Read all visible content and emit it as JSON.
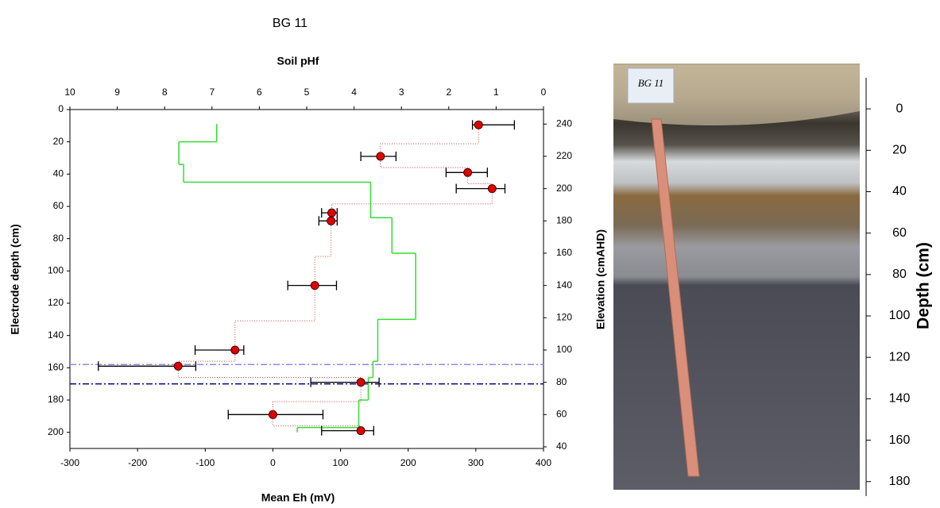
{
  "chart_data": {
    "type": "scatter",
    "title": "BG 11",
    "x_label": "Mean Eh (mV)",
    "y_label": "Electrode depth (cm)",
    "x2_label": "Soil pHf",
    "y2_label": "Elevation (cmAHD)",
    "xlim": [
      -300,
      400
    ],
    "xticks": [
      -300,
      -200,
      -100,
      0,
      100,
      200,
      300,
      400
    ],
    "ylim": [
      0,
      210
    ],
    "yticks": [
      0,
      20,
      40,
      60,
      80,
      100,
      120,
      140,
      160,
      180,
      200
    ],
    "x2lim": [
      10,
      0
    ],
    "x2ticks": [
      10,
      9,
      8,
      7,
      6,
      5,
      4,
      3,
      2,
      1,
      0
    ],
    "y2lim": [
      249,
      39
    ],
    "y2ticks": [
      40,
      60,
      80,
      100,
      120,
      140,
      160,
      180,
      200,
      220,
      240
    ],
    "eh": {
      "color": "#e00000",
      "values": [
        304,
        159,
        288,
        324,
        87,
        86,
        62,
        -56,
        -140,
        130,
        0,
        130
      ],
      "depth": [
        9.5,
        29,
        39,
        49,
        64,
        69,
        109,
        149,
        159,
        169,
        189,
        199
      ],
      "low": [
        295,
        130,
        256,
        271,
        72,
        68,
        22,
        -115,
        -258,
        56,
        -66,
        72
      ],
      "high": [
        357,
        182,
        317,
        343,
        95,
        95,
        94,
        -43,
        -114,
        157,
        74,
        149
      ]
    },
    "ph": {
      "color": "#33dd33",
      "edges": [
        9,
        20,
        34,
        45,
        67,
        89,
        130,
        156,
        166,
        180,
        197,
        200
      ],
      "values": [
        6.9,
        7.7,
        7.6,
        3.65,
        3.2,
        2.7,
        3.5,
        3.6,
        3.7,
        3.9,
        5.2
      ]
    },
    "hlines": [
      {
        "value": 158,
        "color": "#8888ff"
      },
      {
        "value": 170,
        "color": "#000080"
      }
    ]
  },
  "photo": {
    "label": "BG 11",
    "y_label": "Depth (cm)",
    "ylim": [
      -15,
      187
    ],
    "yticks": [
      0,
      20,
      40,
      60,
      80,
      100,
      120,
      140,
      160,
      180
    ]
  }
}
